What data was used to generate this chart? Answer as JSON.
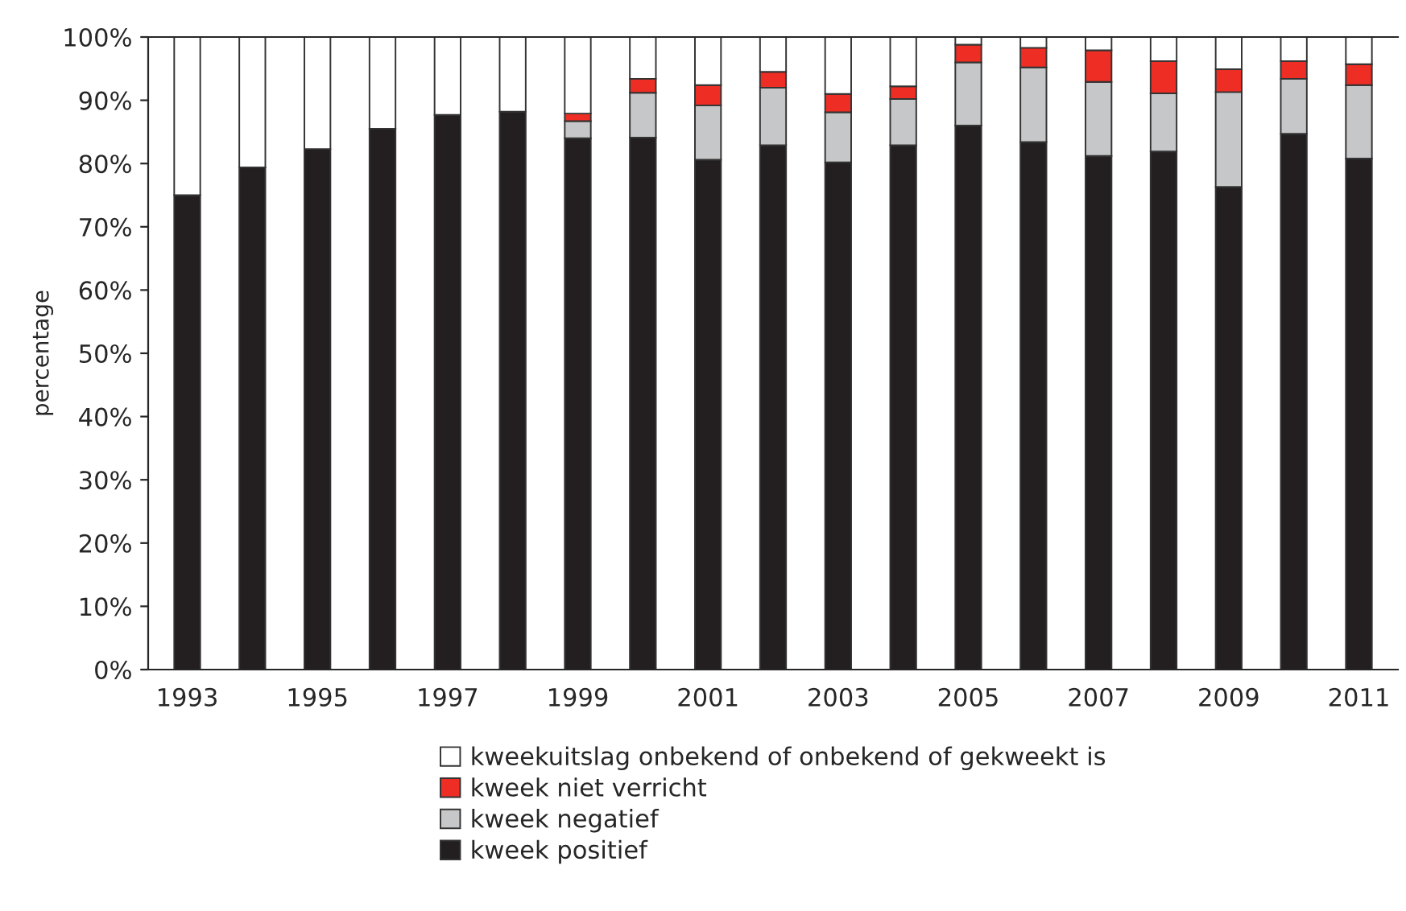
{
  "chart_data": {
    "type": "bar",
    "stacked": true,
    "ylabel": "percentage",
    "categories": [
      "1993",
      null,
      "1995",
      null,
      "1997",
      null,
      "1999",
      null,
      "2001",
      null,
      "2003",
      null,
      "2005",
      null,
      "2007",
      null,
      "2009",
      null,
      "2011"
    ],
    "series": [
      {
        "name": "kweek positief",
        "color": "#231f20",
        "values": [
          75.0,
          79.4,
          82.3,
          85.5,
          87.7,
          88.2,
          84.0,
          84.1,
          80.6,
          82.9,
          80.2,
          82.9,
          86.0,
          83.4,
          81.2,
          81.9,
          76.3,
          84.7,
          80.8
        ]
      },
      {
        "name": "kweek negatief",
        "color": "#c6c7c8",
        "values": [
          0,
          0,
          0,
          0,
          0,
          0,
          2.7,
          7.1,
          8.6,
          9.1,
          7.9,
          7.3,
          10.0,
          11.8,
          11.7,
          9.2,
          15.0,
          8.7,
          11.6
        ]
      },
      {
        "name": "kweek niet verricht",
        "color": "#ee2e24",
        "values": [
          0,
          0,
          0,
          0,
          0,
          0,
          1.2,
          2.2,
          3.2,
          2.5,
          2.9,
          2.0,
          2.8,
          3.1,
          5.0,
          5.1,
          3.6,
          2.8,
          3.3
        ]
      },
      {
        "name": "kweekuitslag onbekend of onbekend of gekweekt is",
        "color": "#ffffff",
        "values": [
          25.0,
          20.6,
          17.7,
          14.5,
          12.3,
          11.8,
          12.1,
          6.6,
          7.6,
          5.5,
          9.0,
          7.8,
          1.2,
          1.7,
          2.1,
          3.8,
          5.1,
          3.8,
          4.3
        ]
      }
    ],
    "ylim": [
      0,
      100
    ],
    "yticks": [
      {
        "value": 0,
        "label": "0%"
      },
      {
        "value": 10,
        "label": "10%"
      },
      {
        "value": 20,
        "label": "20%"
      },
      {
        "value": 30,
        "label": "30%"
      },
      {
        "value": 40,
        "label": "40%"
      },
      {
        "value": 50,
        "label": "50%"
      },
      {
        "value": 60,
        "label": "60%"
      },
      {
        "value": 70,
        "label": "70%"
      },
      {
        "value": 80,
        "label": "80%"
      },
      {
        "value": 90,
        "label": "90%"
      },
      {
        "value": 100,
        "label": "100%"
      }
    ],
    "grid": false,
    "legend": "bottom"
  }
}
